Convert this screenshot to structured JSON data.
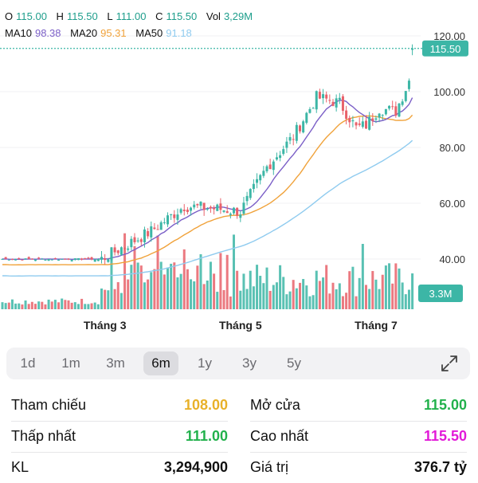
{
  "header": {
    "ohlc": [
      {
        "key": "O",
        "value": "115.00",
        "color": "#1e9e8c"
      },
      {
        "key": "H",
        "value": "115.50",
        "color": "#1e9e8c"
      },
      {
        "key": "L",
        "value": "111.00",
        "color": "#1e9e8c"
      },
      {
        "key": "C",
        "value": "115.50",
        "color": "#1e9e8c"
      },
      {
        "key": "Vol",
        "value": "3,29M",
        "color": "#1e9e8c"
      }
    ],
    "ma": [
      {
        "key": "MA10",
        "value": "98.38",
        "color": "#7b5fc7"
      },
      {
        "key": "MA20",
        "value": "95.31",
        "color": "#f0a23a"
      },
      {
        "key": "MA50",
        "value": "91.18",
        "color": "#8fcbef"
      }
    ]
  },
  "chart_data": {
    "type": "candlestick",
    "y_ticks": [
      "120.00",
      "100.00",
      "80.00",
      "60.00",
      "40.00"
    ],
    "y_tick_values": [
      120,
      100,
      80,
      60,
      40
    ],
    "x_ticks": [
      {
        "label": "Tháng 3",
        "index": 31
      },
      {
        "label": "Tháng 5",
        "index": 72
      },
      {
        "label": "Tháng 7",
        "index": 113
      }
    ],
    "last_price_label": "115.50",
    "last_price": 115.5,
    "volume_label": "3.3M",
    "colors": {
      "up": "#3cb6a6",
      "down": "#e8616a",
      "ma10": "#7b5fc7",
      "ma20": "#f0a23a",
      "ma50": "#8fcbef",
      "last": "#3cb6a6"
    }
  },
  "range_tabs": [
    "1d",
    "1m",
    "3m",
    "6m",
    "1y",
    "3y",
    "5y"
  ],
  "active_tab": "6m",
  "stats": {
    "left": [
      {
        "label": "Tham chiếu",
        "value": "108.00",
        "color": "#e8b12a"
      },
      {
        "label": "Thấp nhất",
        "value": "111.00",
        "color": "#22b14c"
      },
      {
        "label": "KL",
        "value": "3,294,900",
        "color": "#111111"
      }
    ],
    "right": [
      {
        "label": "Mở cửa",
        "value": "115.00",
        "color": "#22b14c"
      },
      {
        "label": "Cao nhất",
        "value": "115.50",
        "color": "#e21ad8"
      },
      {
        "label": "Giá trị",
        "value": "376.7 tỷ",
        "color": "#111111"
      }
    ]
  }
}
